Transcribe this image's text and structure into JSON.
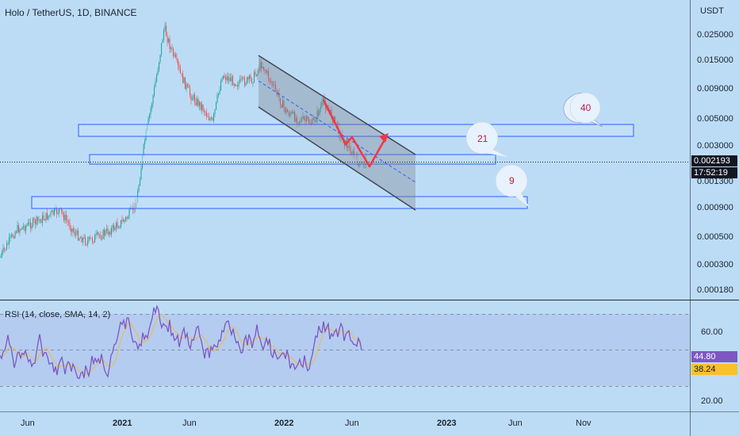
{
  "header": {
    "title": "Holo / TetherUS, 1D, BINANCE",
    "currency": "USDT"
  },
  "price_axis": {
    "ticks": [
      "0.025000",
      "0.015000",
      "0.009000",
      "0.005000",
      "0.003000",
      "0.001300",
      "0.000900",
      "0.000500",
      "0.000300",
      "0.000180"
    ],
    "current_price": "0.002193",
    "countdown": "17:52:19"
  },
  "rsi": {
    "label": "RSI (14, close, SMA, 14, 2)",
    "ticks": [
      "60.00",
      "20.00"
    ],
    "value": "44.80",
    "sma_value": "38.24"
  },
  "time_axis": {
    "ticks": [
      "Jun",
      "2021",
      "Jun",
      "2022",
      "Jun",
      "2023",
      "Jun",
      "Nov"
    ]
  },
  "annotations": {
    "bubbles": [
      "40",
      "21",
      "9"
    ]
  },
  "colors": {
    "background": "#bcdcf6",
    "rsi_line": "#7e57c2",
    "rsi_sma": "#f5b93a",
    "up_candle": "#26a69a",
    "down_candle": "#ef5350",
    "zone_border": "#2962ff",
    "arrow": "#f23645",
    "price_tag_bg": "#131722",
    "rsi_tag_bg": "#7e57c2",
    "sma_tag_bg": "#fbc02d"
  }
}
